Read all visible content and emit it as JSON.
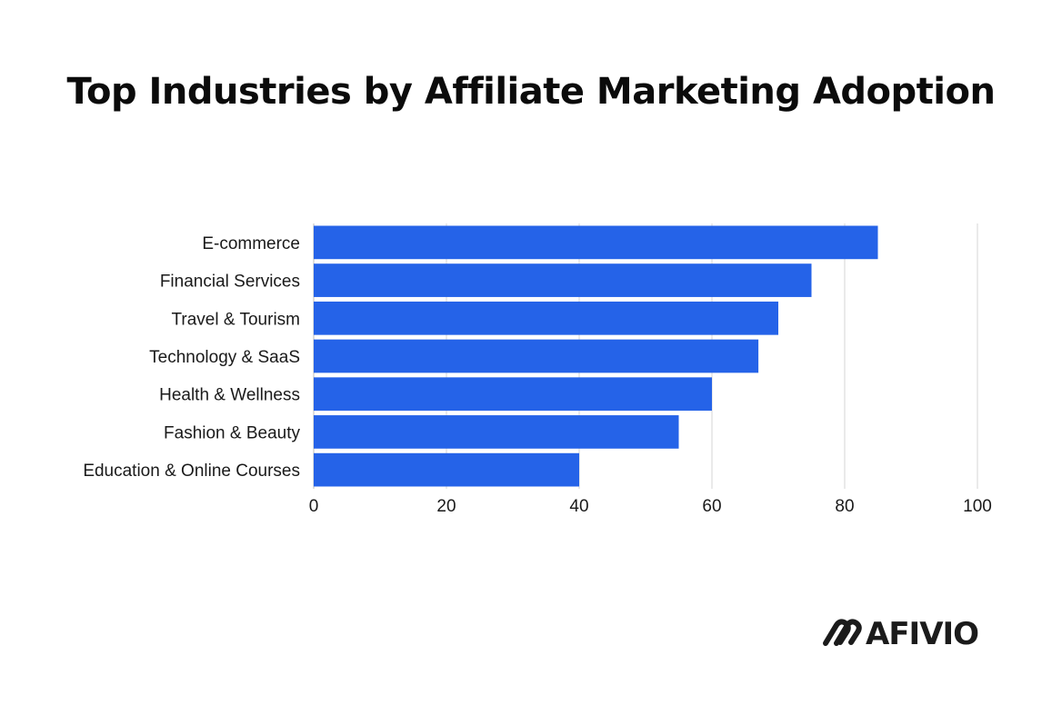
{
  "chart_data": {
    "type": "bar",
    "orientation": "horizontal",
    "title": "Top Industries by Affiliate Marketing Adoption",
    "categories": [
      "E-commerce",
      "Financial Services",
      "Travel & Tourism",
      "Technology & SaaS",
      "Health & Wellness",
      "Fashion & Beauty",
      "Education & Online Courses"
    ],
    "values": [
      85,
      75,
      70,
      67,
      60,
      55,
      40
    ],
    "xlim": [
      0,
      100
    ],
    "xticks": [
      0,
      20,
      40,
      60,
      80,
      100
    ],
    "xlabel": "",
    "ylabel": "",
    "grid": "vertical",
    "bar_color": "#2563e8",
    "grid_color": "#d4d4d4"
  },
  "brand": {
    "name": "AFIVIO",
    "icon": "afivio-logo-icon"
  }
}
